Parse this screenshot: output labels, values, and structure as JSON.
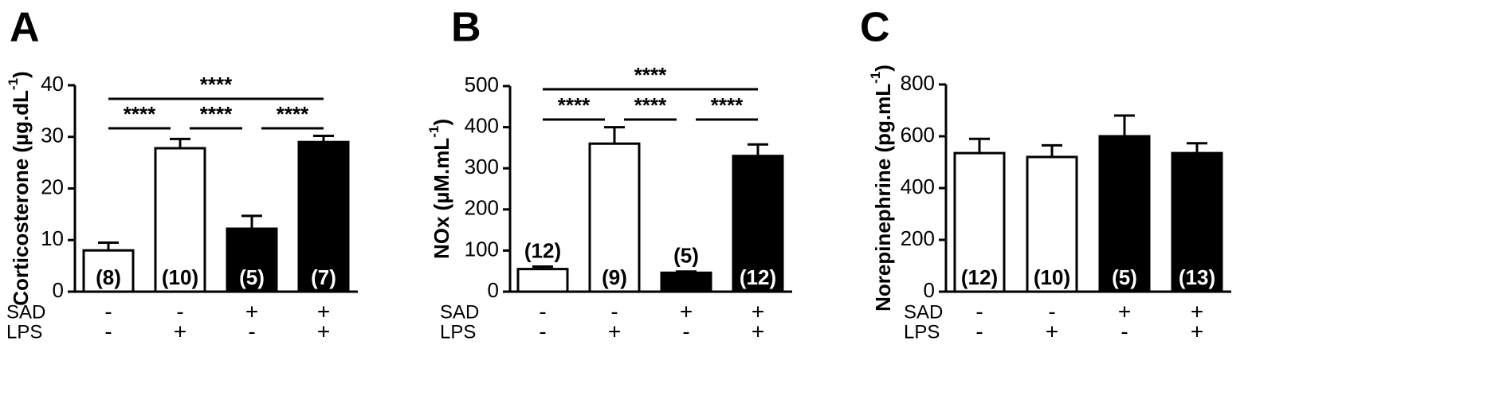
{
  "colors": {
    "group1": "#ffffff",
    "group2": "#ffffff",
    "group3": "#000000",
    "group4": "#000000",
    "ink": "#000000",
    "count_on_white": "#000000",
    "count_on_black": "#ffffff"
  },
  "factor_rows": [
    "SAD",
    "LPS"
  ],
  "chart_data": [
    {
      "type": "bar",
      "panel": "A",
      "ylabel": "Corticosterone (µg.dL",
      "ylabel_sup": "-1",
      "ylabel_close": ")",
      "ylim": [
        0,
        40
      ],
      "yticks": [
        0,
        10,
        20,
        30,
        40
      ],
      "categories": [
        "SAD- LPS-",
        "SAD- LPS+",
        "SAD+ LPS-",
        "SAD+ LPS+"
      ],
      "values": [
        8,
        27.8,
        12.2,
        29
      ],
      "errors": [
        1.5,
        1.8,
        2.5,
        1.2
      ],
      "counts": [
        "(8)",
        "(10)",
        "(5)",
        "(7)"
      ],
      "count_pos": [
        "inside",
        "inside",
        "inside",
        "inside"
      ],
      "fills": [
        "white",
        "white",
        "black",
        "black"
      ],
      "factors": {
        "SAD": [
          "-",
          "-",
          "+",
          "+"
        ],
        "LPS": [
          "-",
          "+",
          "-",
          "+"
        ]
      },
      "significance": [
        {
          "from": 0,
          "to": 3,
          "label": "****",
          "level": 2
        },
        {
          "from": 0,
          "to": 1,
          "label": "****",
          "level": 1
        },
        {
          "from": 1,
          "to": 2,
          "label": "****",
          "level": 1
        },
        {
          "from": 2,
          "to": 3,
          "label": "****",
          "level": 1
        }
      ]
    },
    {
      "type": "bar",
      "panel": "B",
      "ylabel": "NOx (µM.mL",
      "ylabel_sup": "-1",
      "ylabel_close": ")",
      "ylim": [
        0,
        500
      ],
      "yticks": [
        0,
        100,
        200,
        300,
        400,
        500
      ],
      "categories": [
        "SAD- LPS-",
        "SAD- LPS+",
        "SAD+ LPS-",
        "SAD+ LPS+"
      ],
      "values": [
        55,
        360,
        46,
        330
      ],
      "errors": [
        6,
        40,
        3,
        28
      ],
      "counts": [
        "(12)",
        "(9)",
        "(5)",
        "(12)"
      ],
      "count_pos": [
        "above",
        "inside",
        "above",
        "inside"
      ],
      "fills": [
        "white",
        "white",
        "black",
        "black"
      ],
      "factors": {
        "SAD": [
          "-",
          "-",
          "+",
          "+"
        ],
        "LPS": [
          "-",
          "+",
          "-",
          "+"
        ]
      },
      "significance": [
        {
          "from": 0,
          "to": 3,
          "label": "****",
          "level": 2
        },
        {
          "from": 0,
          "to": 1,
          "label": "****",
          "level": 1
        },
        {
          "from": 1,
          "to": 2,
          "label": "****",
          "level": 1
        },
        {
          "from": 2,
          "to": 3,
          "label": "****",
          "level": 1
        }
      ]
    },
    {
      "type": "bar",
      "panel": "C",
      "ylabel": "Norepinephrine (pg.mL",
      "ylabel_sup": "-1",
      "ylabel_close": ")",
      "ylim": [
        0,
        800
      ],
      "yticks": [
        0,
        200,
        400,
        600,
        800
      ],
      "categories": [
        "SAD- LPS-",
        "SAD- LPS+",
        "SAD+ LPS-",
        "SAD+ LPS+"
      ],
      "values": [
        535,
        520,
        600,
        535
      ],
      "errors": [
        55,
        45,
        80,
        38
      ],
      "counts": [
        "(12)",
        "(10)",
        "(5)",
        "(13)"
      ],
      "count_pos": [
        "inside",
        "inside",
        "inside",
        "inside"
      ],
      "fills": [
        "white",
        "white",
        "black",
        "black"
      ],
      "factors": {
        "SAD": [
          "-",
          "-",
          "+",
          "+"
        ],
        "LPS": [
          "-",
          "+",
          "-",
          "+"
        ]
      },
      "significance": []
    }
  ]
}
